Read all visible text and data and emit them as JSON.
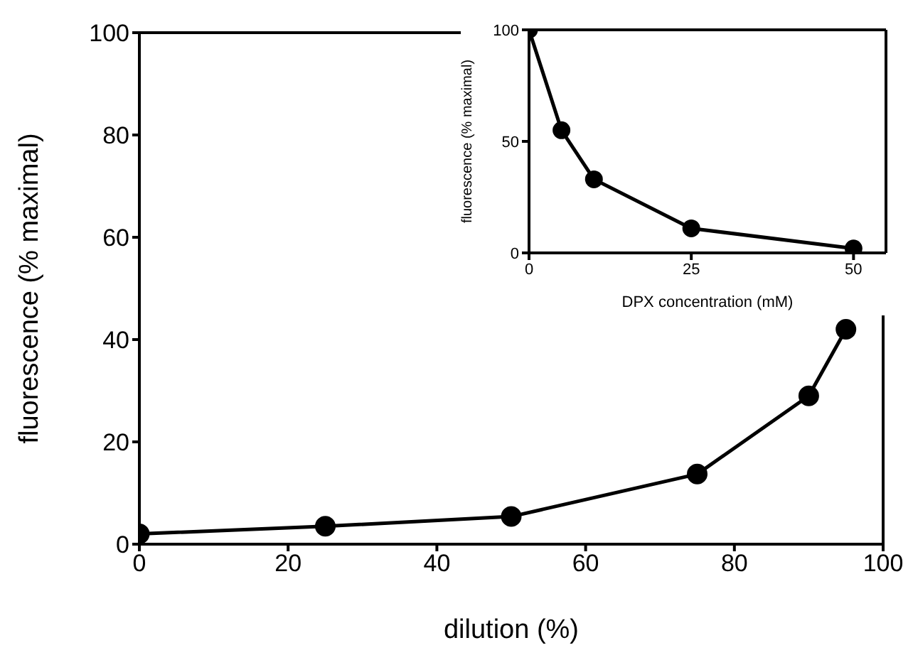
{
  "chart_data": [
    {
      "type": "line",
      "xlabel": "dilution (%)",
      "ylabel": "fluorescence (% maximal)",
      "x": [
        0,
        25,
        50,
        75,
        90,
        95
      ],
      "series": [
        {
          "color": "#000000",
          "values": [
            2,
            3.5,
            5.4,
            13.7,
            29,
            42
          ]
        }
      ],
      "xlim": [
        0,
        100
      ],
      "ylim": [
        0,
        100
      ],
      "xticks": [
        0,
        20,
        40,
        60,
        80,
        100
      ],
      "yticks": [
        0,
        20,
        40,
        60,
        80,
        100
      ],
      "grid": false,
      "legend": false,
      "marker": "circle",
      "line_style": "solid"
    },
    {
      "type": "line",
      "xlabel": "DPX concentration (mM)",
      "ylabel": "fluorescence (% maximal)",
      "x": [
        0,
        5,
        10,
        25,
        50
      ],
      "series": [
        {
          "color": "#000000",
          "values": [
            100,
            55,
            33,
            11,
            2
          ]
        }
      ],
      "xlim": [
        0,
        55
      ],
      "ylim": [
        0,
        100
      ],
      "xticks": [
        0,
        25,
        50
      ],
      "yticks": [
        0,
        50,
        100
      ],
      "grid": false,
      "legend": false,
      "marker": "circle",
      "line_style": "solid"
    }
  ]
}
